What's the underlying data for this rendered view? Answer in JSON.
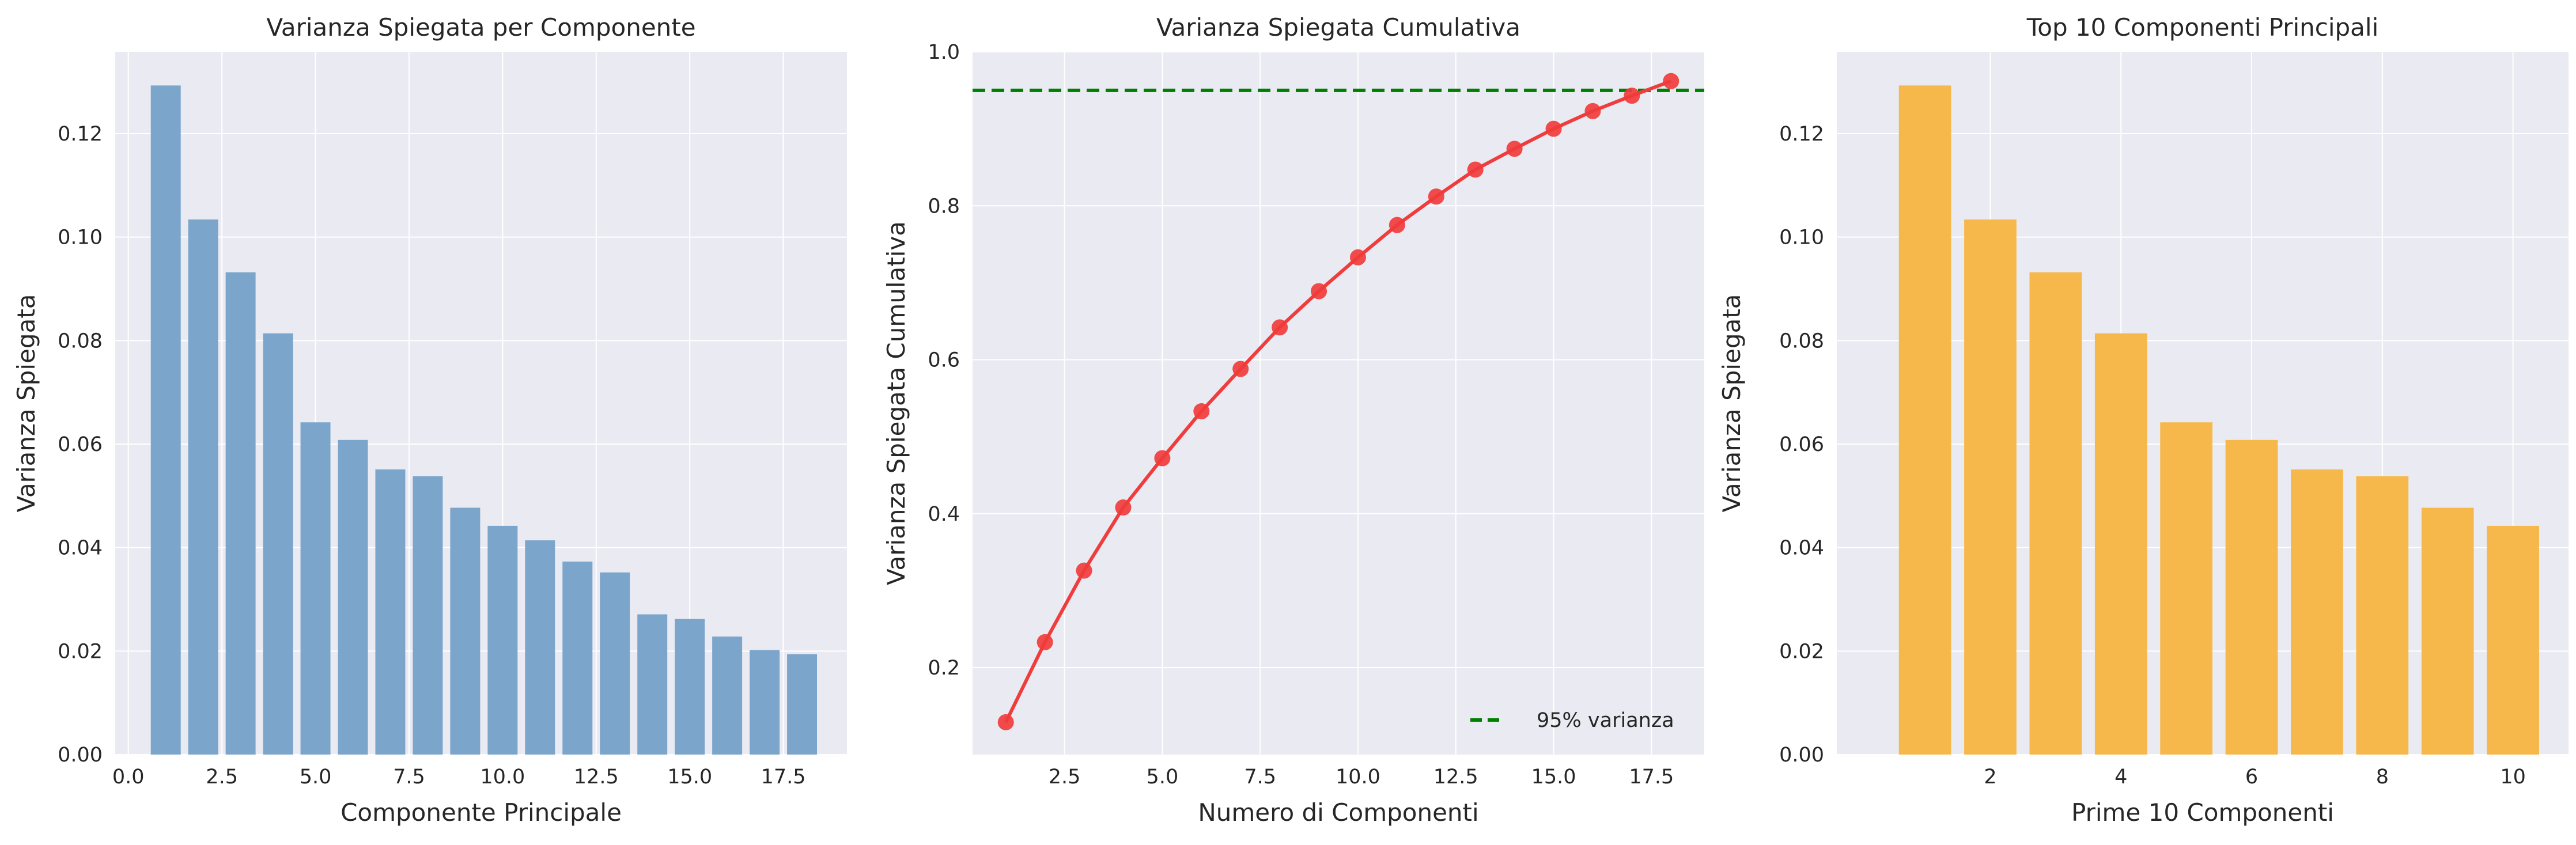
{
  "colors": {
    "plot_bg": "#EAEAF2",
    "grid": "#FFFFFF",
    "bar1": "#7BA5CB",
    "line": "#F03C3C",
    "threshold": "#008000",
    "bar3": "#F7B84B"
  },
  "chart_data": [
    {
      "type": "bar",
      "title": "Varianza Spiegata per Componente",
      "xlabel": "Componente Principale",
      "ylabel": "Varianza Spiegata",
      "x": [
        1,
        2,
        3,
        4,
        5,
        6,
        7,
        8,
        9,
        10,
        11,
        12,
        13,
        14,
        15,
        16,
        17,
        18
      ],
      "values": [
        0.1293,
        0.1034,
        0.0932,
        0.0814,
        0.0642,
        0.0608,
        0.0551,
        0.0538,
        0.0477,
        0.0442,
        0.0414,
        0.0373,
        0.0352,
        0.0271,
        0.0262,
        0.0228,
        0.0202,
        0.0194
      ],
      "xlim": [
        -0.35,
        19.2
      ],
      "ylim": [
        0,
        0.1358
      ],
      "xticks": [
        0.0,
        2.5,
        5.0,
        7.5,
        10.0,
        12.5,
        15.0,
        17.5
      ],
      "xtick_labels": [
        "0.0",
        "2.5",
        "5.0",
        "7.5",
        "10.0",
        "12.5",
        "15.0",
        "17.5"
      ],
      "yticks": [
        0.0,
        0.02,
        0.04,
        0.06,
        0.08,
        0.1,
        0.12
      ],
      "ytick_labels": [
        "0.00",
        "0.02",
        "0.04",
        "0.06",
        "0.08",
        "0.10",
        "0.12"
      ],
      "grid": true
    },
    {
      "type": "line",
      "title": "Varianza Spiegata Cumulativa",
      "xlabel": "Numero di Componenti",
      "ylabel": "Varianza Spiegata Cumulativa",
      "x": [
        1,
        2,
        3,
        4,
        5,
        6,
        7,
        8,
        9,
        10,
        11,
        12,
        13,
        14,
        15,
        16,
        17,
        18
      ],
      "y": [
        0.129,
        0.233,
        0.326,
        0.408,
        0.472,
        0.533,
        0.588,
        0.642,
        0.689,
        0.733,
        0.775,
        0.812,
        0.847,
        0.874,
        0.9,
        0.923,
        0.943,
        0.962
      ],
      "threshold": {
        "value": 0.95,
        "label": "95% varianza"
      },
      "legend": "lower-right",
      "xlim": [
        0.15,
        18.85
      ],
      "ylim": [
        0.087,
        1.0
      ],
      "xticks": [
        2.5,
        5.0,
        7.5,
        10.0,
        12.5,
        15.0,
        17.5
      ],
      "xtick_labels": [
        "2.5",
        "5.0",
        "7.5",
        "10.0",
        "12.5",
        "15.0",
        "17.5"
      ],
      "yticks": [
        0.2,
        0.4,
        0.6,
        0.8,
        1.0
      ],
      "ytick_labels": [
        "0.2",
        "0.4",
        "0.6",
        "0.8",
        "1.0"
      ],
      "grid": true
    },
    {
      "type": "bar",
      "title": "Top 10 Componenti Principali",
      "xlabel": "Prime 10 Componenti",
      "ylabel": "Varianza Spiegata",
      "x": [
        1,
        2,
        3,
        4,
        5,
        6,
        7,
        8,
        9,
        10
      ],
      "values": [
        0.1293,
        0.1034,
        0.0932,
        0.0814,
        0.0642,
        0.0608,
        0.0551,
        0.0538,
        0.0477,
        0.0442
      ],
      "xlim": [
        -0.35,
        10.85
      ],
      "ylim": [
        0,
        0.1358
      ],
      "xticks": [
        2,
        4,
        6,
        8,
        10
      ],
      "xtick_labels": [
        "2",
        "4",
        "6",
        "8",
        "10"
      ],
      "yticks": [
        0.0,
        0.02,
        0.04,
        0.06,
        0.08,
        0.1,
        0.12
      ],
      "ytick_labels": [
        "0.00",
        "0.02",
        "0.04",
        "0.06",
        "0.08",
        "0.10",
        "0.12"
      ],
      "grid": true
    }
  ]
}
